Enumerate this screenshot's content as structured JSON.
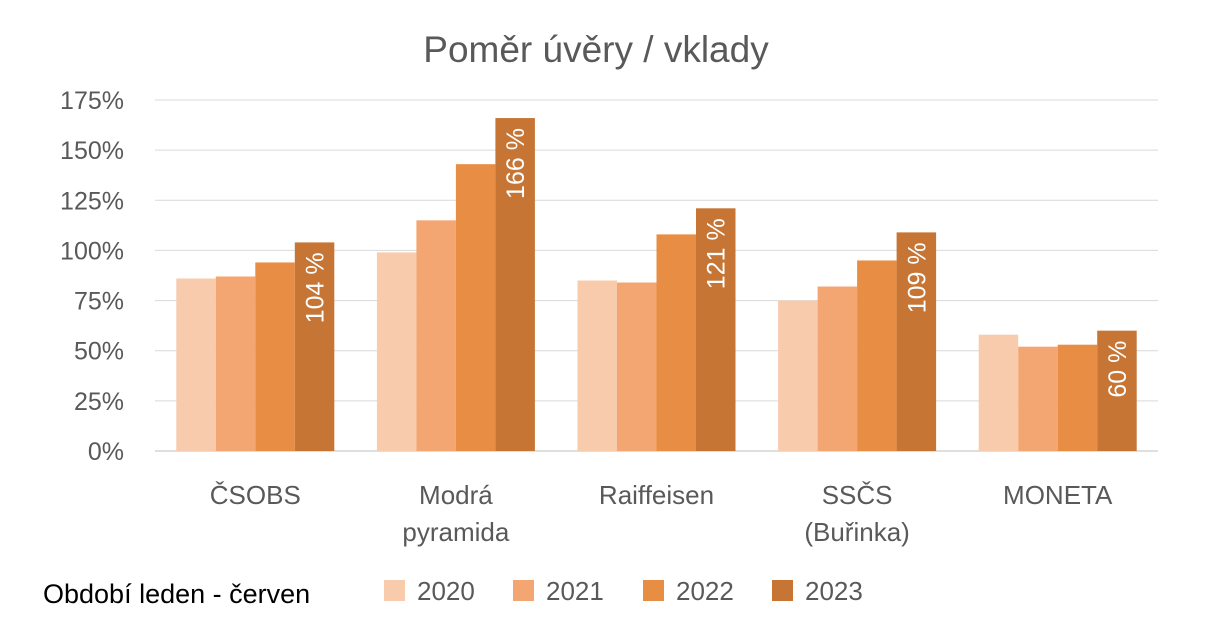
{
  "chart_data": {
    "type": "bar",
    "title": "Poměr úvěry / vklady",
    "categories": [
      "ČSOBS",
      "Modrá pyramida",
      "Raiffeisen",
      "SSČS (Buřinka)",
      "MONETA"
    ],
    "category_lines": [
      [
        "ČSOBS"
      ],
      [
        "Modrá",
        "pyramida"
      ],
      [
        "Raiffeisen"
      ],
      [
        "SSČS",
        "(Buřinka)"
      ],
      [
        "MONETA"
      ]
    ],
    "series": [
      {
        "name": "2020",
        "color": "#F8CBAD",
        "values": [
          86,
          99,
          85,
          75,
          58
        ]
      },
      {
        "name": "2021",
        "color": "#F4A672",
        "values": [
          87,
          115,
          84,
          82,
          52
        ]
      },
      {
        "name": "2022",
        "color": "#E88E44",
        "values": [
          94,
          143,
          108,
          95,
          53
        ]
      },
      {
        "name": "2023",
        "color": "#C67535",
        "values": [
          104,
          166,
          121,
          109,
          60
        ],
        "data_labels": [
          "104 %",
          "166 %",
          "121 %",
          "109 %",
          "60 %"
        ]
      }
    ],
    "yticks": [
      "0%",
      "25%",
      "50%",
      "75%",
      "100%",
      "125%",
      "150%",
      "175%"
    ],
    "ylim": [
      0,
      175
    ],
    "grid": true,
    "legend_position": "bottom",
    "xlabel": "",
    "ylabel": ""
  },
  "note": "Období leden - červen"
}
